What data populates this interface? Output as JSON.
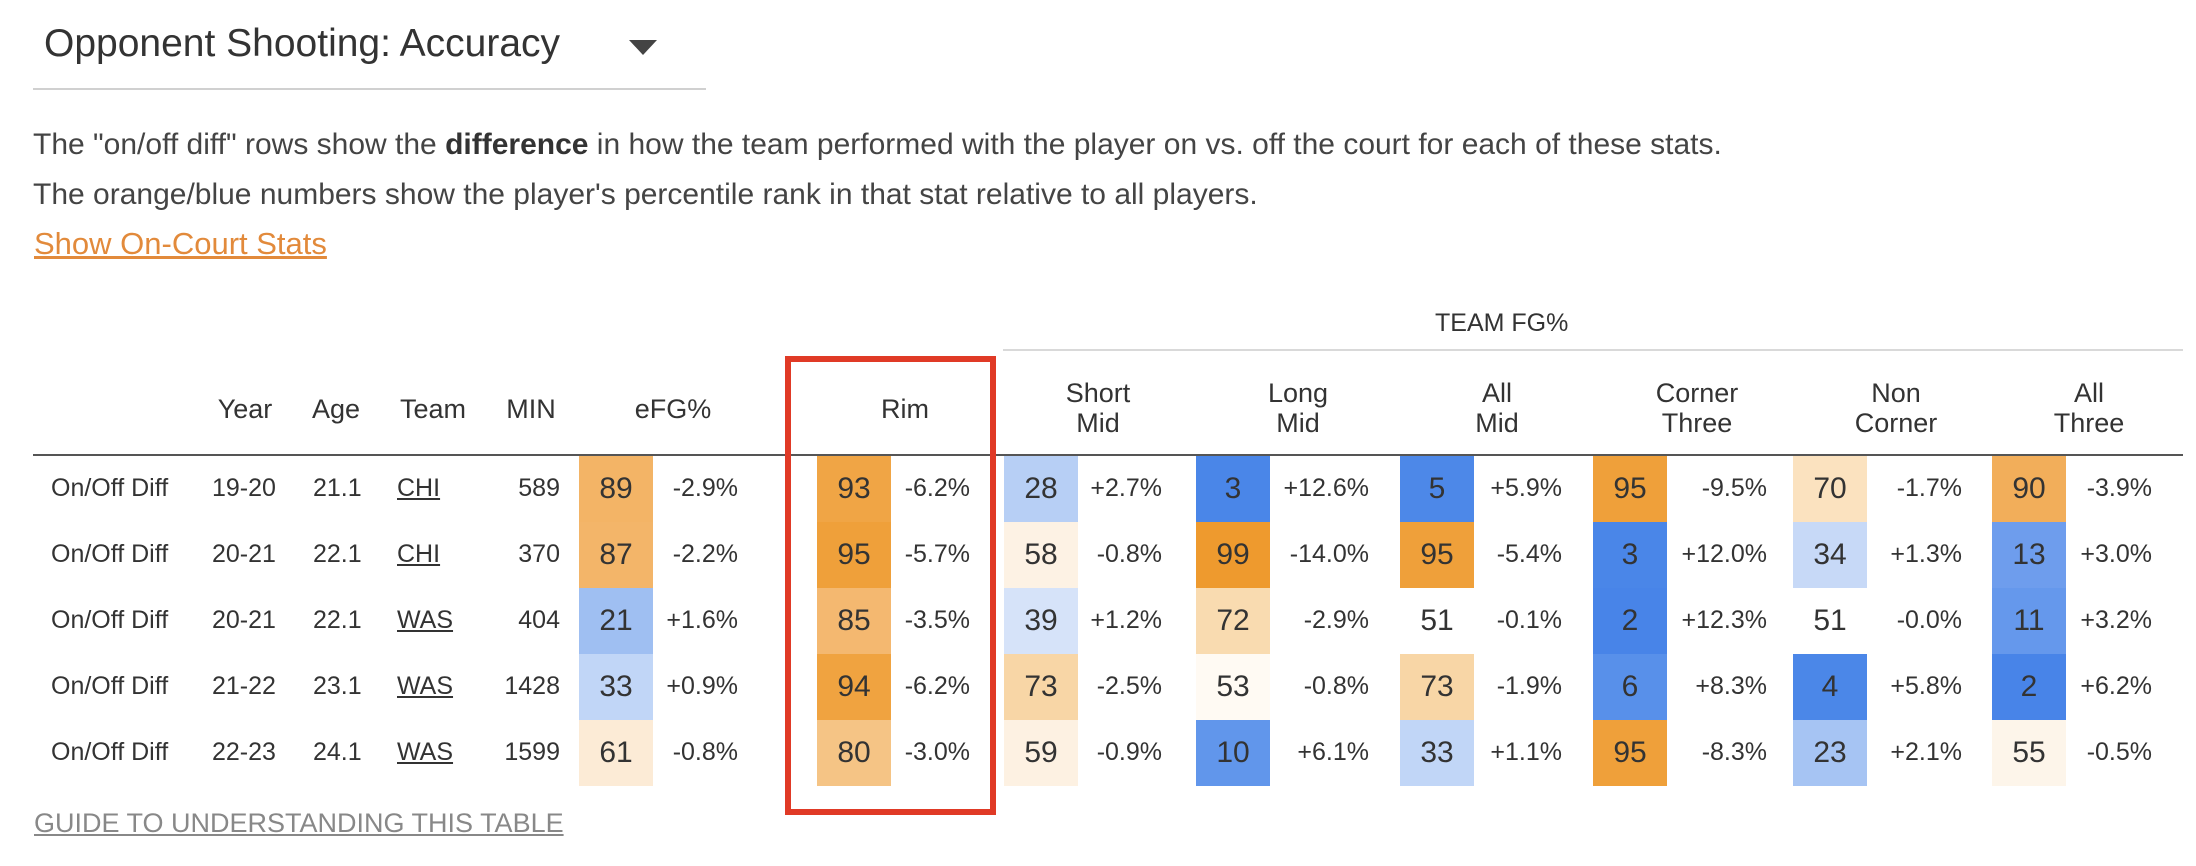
{
  "dropdown": {
    "title": "Opponent Shooting: Accuracy",
    "caret_icon": "caret-down-icon"
  },
  "description": {
    "line1_pre": "The \"on/off diff\" rows show the ",
    "line1_bold": "difference",
    "line1_post": " in how the team performed with the player on vs. off the court for each of these stats.",
    "line2": "The orange/blue numbers show the player's percentile rank in that stat relative to all players."
  },
  "toggle_link": "Show On-Court Stats",
  "table": {
    "group_header": "TEAM FG%",
    "headers": {
      "year": "Year",
      "age": "Age",
      "team": "Team",
      "min": "MIN",
      "efg": "eFG%",
      "rim": "Rim",
      "short_mid_1": "Short",
      "short_mid_2": "Mid",
      "long_mid_1": "Long",
      "long_mid_2": "Mid",
      "all_mid_1": "All",
      "all_mid_2": "Mid",
      "corner_three_1": "Corner",
      "corner_three_2": "Three",
      "non_corner_1": "Non",
      "non_corner_2": "Corner",
      "all_three_1": "All",
      "all_three_2": "Three"
    },
    "rows": [
      {
        "label": "On/Off Diff",
        "year": "19-20",
        "age": "21.1",
        "team": "CHI",
        "min": "589",
        "stats": [
          {
            "pct": "89",
            "diff": "-2.9%",
            "color": "#f3b466"
          },
          {
            "pct": "93",
            "diff": "-6.2%",
            "color": "#f0a545"
          },
          {
            "pct": "28",
            "diff": "+2.7%",
            "color": "#b7cff5"
          },
          {
            "pct": "3",
            "diff": "+12.6%",
            "color": "#4a86e8"
          },
          {
            "pct": "5",
            "diff": "+5.9%",
            "color": "#4d88e8"
          },
          {
            "pct": "95",
            "diff": "-9.5%",
            "color": "#efa03a"
          },
          {
            "pct": "70",
            "diff": "-1.7%",
            "color": "#fbe2bf"
          },
          {
            "pct": "90",
            "diff": "-3.9%",
            "color": "#f2ae5a"
          }
        ]
      },
      {
        "label": "On/Off Diff",
        "year": "20-21",
        "age": "22.1",
        "team": "CHI",
        "min": "370",
        "stats": [
          {
            "pct": "87",
            "diff": "-2.2%",
            "color": "#f3b569"
          },
          {
            "pct": "95",
            "diff": "-5.7%",
            "color": "#efa03a"
          },
          {
            "pct": "58",
            "diff": "-0.8%",
            "color": "#fdf2e4"
          },
          {
            "pct": "99",
            "diff": "-14.0%",
            "color": "#ee9a2e"
          },
          {
            "pct": "95",
            "diff": "-5.4%",
            "color": "#efa03a"
          },
          {
            "pct": "3",
            "diff": "+12.0%",
            "color": "#4a86e8"
          },
          {
            "pct": "34",
            "diff": "+1.3%",
            "color": "#c7d9f7"
          },
          {
            "pct": "13",
            "diff": "+3.0%",
            "color": "#6e9ded"
          }
        ]
      },
      {
        "label": "On/Off Diff",
        "year": "20-21",
        "age": "22.1",
        "team": "WAS",
        "min": "404",
        "stats": [
          {
            "pct": "21",
            "diff": "+1.6%",
            "color": "#9fbff2"
          },
          {
            "pct": "85",
            "diff": "-3.5%",
            "color": "#f4b870"
          },
          {
            "pct": "39",
            "diff": "+1.2%",
            "color": "#d6e3f9"
          },
          {
            "pct": "72",
            "diff": "-2.9%",
            "color": "#f9dbb0"
          },
          {
            "pct": "51",
            "diff": "-0.1%",
            "color": "#ffffff"
          },
          {
            "pct": "2",
            "diff": "+12.3%",
            "color": "#4884e8"
          },
          {
            "pct": "51",
            "diff": "-0.0%",
            "color": "#ffffff"
          },
          {
            "pct": "11",
            "diff": "+3.2%",
            "color": "#6598ec"
          }
        ]
      },
      {
        "label": "On/Off Diff",
        "year": "21-22",
        "age": "23.1",
        "team": "WAS",
        "min": "1428",
        "stats": [
          {
            "pct": "33",
            "diff": "+0.9%",
            "color": "#c1d6f7"
          },
          {
            "pct": "94",
            "diff": "-6.2%",
            "color": "#f0a340"
          },
          {
            "pct": "73",
            "diff": "-2.5%",
            "color": "#f8d6a6"
          },
          {
            "pct": "53",
            "diff": "-0.8%",
            "color": "#fffaf3"
          },
          {
            "pct": "73",
            "diff": "-1.9%",
            "color": "#f8d6a6"
          },
          {
            "pct": "6",
            "diff": "+8.3%",
            "color": "#5890ea"
          },
          {
            "pct": "4",
            "diff": "+5.8%",
            "color": "#4b87e8"
          },
          {
            "pct": "2",
            "diff": "+6.2%",
            "color": "#4884e8"
          }
        ]
      },
      {
        "label": "On/Off Diff",
        "year": "22-23",
        "age": "24.1",
        "team": "WAS",
        "min": "1599",
        "stats": [
          {
            "pct": "61",
            "diff": "-0.8%",
            "color": "#fcebd6"
          },
          {
            "pct": "80",
            "diff": "-3.0%",
            "color": "#f5c485"
          },
          {
            "pct": "59",
            "diff": "-0.9%",
            "color": "#fdf1e2"
          },
          {
            "pct": "10",
            "diff": "+6.1%",
            "color": "#6196eb"
          },
          {
            "pct": "33",
            "diff": "+1.1%",
            "color": "#c1d6f7"
          },
          {
            "pct": "95",
            "diff": "-8.3%",
            "color": "#efa03a"
          },
          {
            "pct": "23",
            "diff": "+2.1%",
            "color": "#a6c4f3"
          },
          {
            "pct": "55",
            "diff": "-0.5%",
            "color": "#fdf5ea"
          }
        ]
      }
    ]
  },
  "guide_link": "GUIDE TO UNDERSTANDING THIS TABLE"
}
